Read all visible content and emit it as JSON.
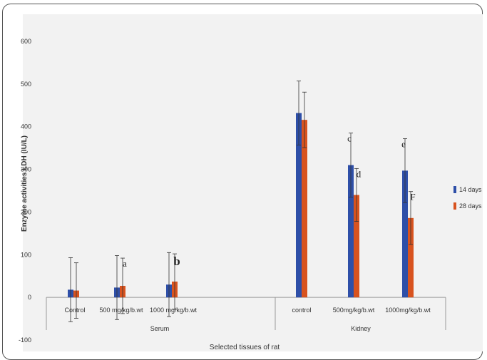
{
  "chart_data": {
    "type": "bar",
    "title": "",
    "xlabel": "Selected tissues of rat",
    "ylabel": "Enzyme activities LDH (IU/L)",
    "ylim": [
      -100,
      600
    ],
    "yticks": [
      -100,
      0,
      100,
      200,
      300,
      400,
      500,
      600
    ],
    "groups": [
      {
        "label": "Serum",
        "categories": [
          "Control",
          "500 mg/kg/b.wt",
          "1000 mg/kg/b.wt"
        ]
      },
      {
        "label": "Kidney",
        "categories": [
          "control",
          "500mg/kg/b.wt",
          "1000mg/kg/b.wt"
        ]
      }
    ],
    "categories": [
      "Control",
      "500 mg/kg/b.wt",
      "1000 mg/kg/b.wt",
      "control",
      "500mg/kg/b.wt",
      "1000mg/kg/b.wt"
    ],
    "series": [
      {
        "name": "14 days",
        "color": "#2e4fa8",
        "values": [
          18,
          23,
          30,
          432,
          310,
          297
        ],
        "errors": [
          75,
          75,
          75,
          75,
          75,
          75
        ],
        "letters": [
          "",
          "",
          "",
          "",
          "c",
          "e"
        ]
      },
      {
        "name": "28 days",
        "color": "#d8531f",
        "values": [
          16,
          27,
          37,
          416,
          240,
          186
        ],
        "errors": [
          65,
          65,
          65,
          65,
          62,
          62
        ],
        "letters": [
          "",
          "a",
          "b",
          "",
          "d",
          "F"
        ]
      }
    ],
    "legend_position": "right",
    "grid": false
  }
}
